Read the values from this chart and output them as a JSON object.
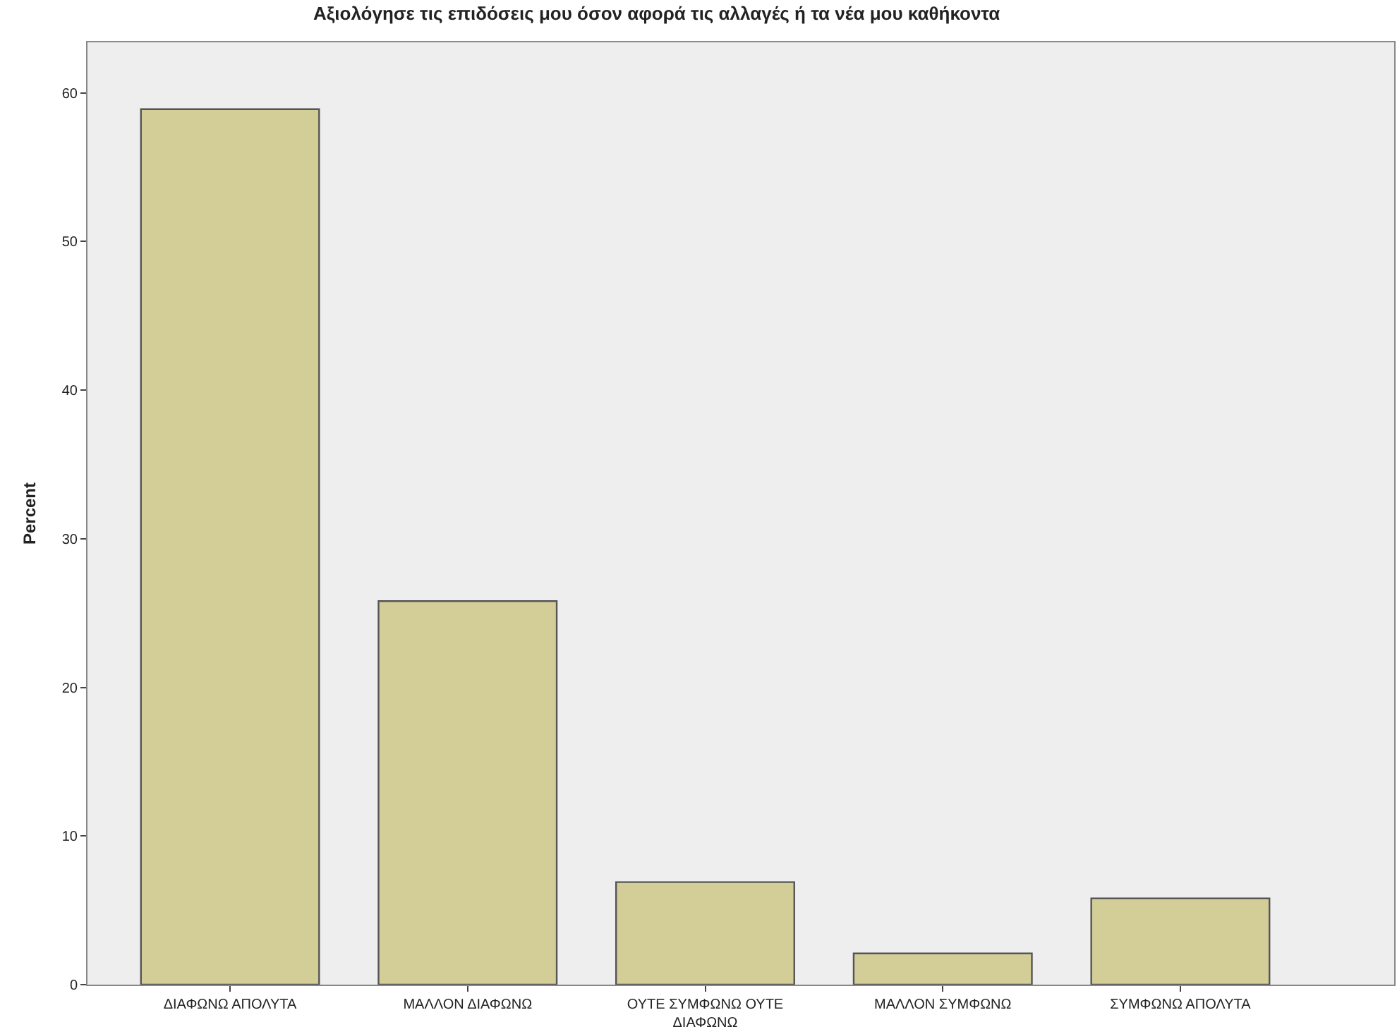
{
  "chart_data": {
    "type": "bar",
    "title": "Αξιολόγησε τις επιδόσεις μου όσον αφορά τις αλλαγές ή τα νέα μου καθήκοντα",
    "ylabel": "Percent",
    "categories": [
      "ΔΙΑΦΩΝΩ ΑΠΟΛΥΤΑ",
      "ΜΑΛΛΟΝ ΔΙΑΦΩΝΩ",
      "ΟΥΤΕ ΣΥΜΦΩΝΩ ΟΥΤΕ ΔΙΑΦΩΝΩ",
      "ΜΑΛΛΟΝ ΣΥΜΦΩΝΩ",
      "ΣΥΜΦΩΝΩ ΑΠΟΛΥΤΑ"
    ],
    "values": [
      58.9,
      25.8,
      6.9,
      2.1,
      5.8
    ],
    "color": "#d3ce97",
    "ylim": [
      0,
      63.4
    ],
    "yticks": [
      0,
      10,
      20,
      30,
      40,
      50,
      60
    ],
    "grid": false,
    "legend": false
  }
}
